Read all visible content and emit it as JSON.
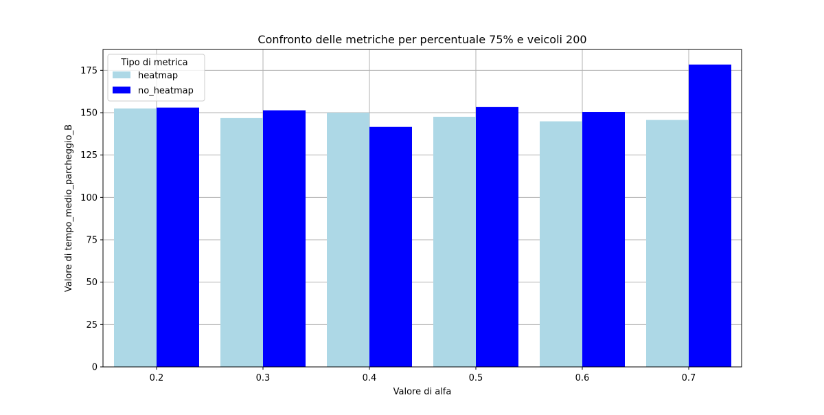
{
  "chart_data": {
    "type": "bar",
    "title": "Confronto delle metriche per percentuale 75% e veicoli 200",
    "xlabel": "Valore di alfa",
    "ylabel": "Valore di tempo_medio_parcheggio_B",
    "categories": [
      "0.2",
      "0.3",
      "0.4",
      "0.5",
      "0.6",
      "0.7"
    ],
    "series": [
      {
        "name": "heatmap",
        "color": "#add8e6",
        "values": [
          152.5,
          146.8,
          150.0,
          147.6,
          144.9,
          145.7
        ]
      },
      {
        "name": "no_heatmap",
        "color": "#0000ff",
        "values": [
          153.0,
          151.4,
          141.6,
          153.3,
          150.4,
          178.4
        ]
      }
    ],
    "ylim": [
      0,
      187.3
    ],
    "yticks": [
      0,
      25,
      50,
      75,
      100,
      125,
      150,
      175
    ],
    "grid": true,
    "legend": {
      "title": "Tipo di metrica",
      "placement": "upper-left"
    }
  }
}
